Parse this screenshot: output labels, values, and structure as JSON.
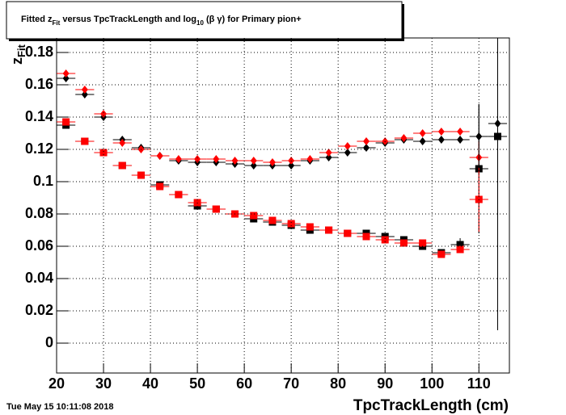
{
  "chart_data": {
    "type": "scatter",
    "title_parts": [
      "Fitted  z",
      "Fit",
      "  versus TpcTrackLength and log",
      "10",
      " (β γ) for Primary pion+"
    ],
    "ylabel_parts": [
      "z",
      "Fit"
    ],
    "xlabel": "TpcTrackLength (cm)",
    "date": "Tue May 15 10:11:08 2018",
    "xlim": [
      20,
      116.5
    ],
    "ylim": [
      -0.0185,
      0.189
    ],
    "xticks": [
      20,
      30,
      40,
      50,
      60,
      70,
      80,
      90,
      100,
      110
    ],
    "yticks": [
      0,
      0.02,
      0.04,
      0.06,
      0.08,
      0.1,
      0.12,
      0.14,
      0.16,
      0.18
    ],
    "grid": true,
    "xerr": 2,
    "x": [
      22,
      26,
      30,
      34,
      38,
      42,
      46,
      50,
      54,
      58,
      62,
      66,
      70,
      74,
      78,
      82,
      86,
      90,
      94,
      98,
      102,
      106,
      110,
      114
    ],
    "series": [
      {
        "color": "#000000",
        "marker": "diamond",
        "values": [
          0.164,
          0.154,
          0.14,
          0.126,
          0.121,
          0.116,
          0.113,
          0.112,
          0.112,
          0.111,
          0.11,
          0.11,
          0.11,
          0.113,
          0.115,
          0.118,
          0.121,
          0.124,
          0.126,
          0.125,
          0.126,
          0.126,
          0.128,
          0.136
        ],
        "errors": [
          0.001,
          0.001,
          0.001,
          0.001,
          0.001,
          0.001,
          0.001,
          0.001,
          0.001,
          0.001,
          0.001,
          0.001,
          0.001,
          0.001,
          0.001,
          0.001,
          0.001,
          0.001,
          0.001,
          0.001,
          0.001,
          0.002,
          0.02,
          0.05
        ]
      },
      {
        "color": "#ff0000",
        "marker": "diamond",
        "values": [
          0.167,
          0.157,
          0.142,
          0.124,
          0.12,
          0.116,
          0.114,
          0.114,
          0.114,
          0.113,
          0.113,
          0.112,
          0.113,
          0.114,
          0.118,
          0.122,
          0.125,
          0.125,
          0.127,
          0.13,
          0.131,
          0.131,
          0.115,
          null
        ],
        "errors": [
          0.001,
          0.001,
          0.001,
          0.001,
          0.001,
          0.001,
          0.001,
          0.001,
          0.001,
          0.001,
          0.001,
          0.001,
          0.001,
          0.001,
          0.001,
          0.001,
          0.001,
          0.001,
          0.001,
          0.001,
          0.001,
          0.002,
          0.01,
          null
        ]
      },
      {
        "color": "#000000",
        "marker": "square",
        "values": [
          0.135,
          0.125,
          0.118,
          0.11,
          0.104,
          0.098,
          0.092,
          0.085,
          0.083,
          0.08,
          0.077,
          0.075,
          0.073,
          0.07,
          0.07,
          0.068,
          0.068,
          0.066,
          0.064,
          0.06,
          0.056,
          0.061,
          0.108,
          0.128
        ],
        "errors": [
          0.001,
          0.001,
          0.001,
          0.001,
          0.001,
          0.001,
          0.001,
          0.001,
          0.001,
          0.001,
          0.001,
          0.001,
          0.001,
          0.001,
          0.001,
          0.001,
          0.001,
          0.001,
          0.001,
          0.001,
          0.001,
          0.004,
          0.04,
          0.12
        ]
      },
      {
        "color": "#ff0000",
        "marker": "square",
        "values": [
          0.137,
          0.125,
          0.118,
          0.11,
          0.104,
          0.097,
          0.092,
          0.087,
          0.083,
          0.08,
          0.079,
          0.076,
          0.074,
          0.072,
          0.07,
          0.068,
          0.066,
          0.064,
          0.062,
          0.062,
          0.055,
          0.058,
          0.089,
          null
        ],
        "errors": [
          0.001,
          0.001,
          0.001,
          0.001,
          0.001,
          0.001,
          0.001,
          0.001,
          0.001,
          0.001,
          0.001,
          0.001,
          0.001,
          0.001,
          0.001,
          0.001,
          0.001,
          0.001,
          0.001,
          0.001,
          0.001,
          0.002,
          0.02,
          null
        ]
      }
    ]
  }
}
